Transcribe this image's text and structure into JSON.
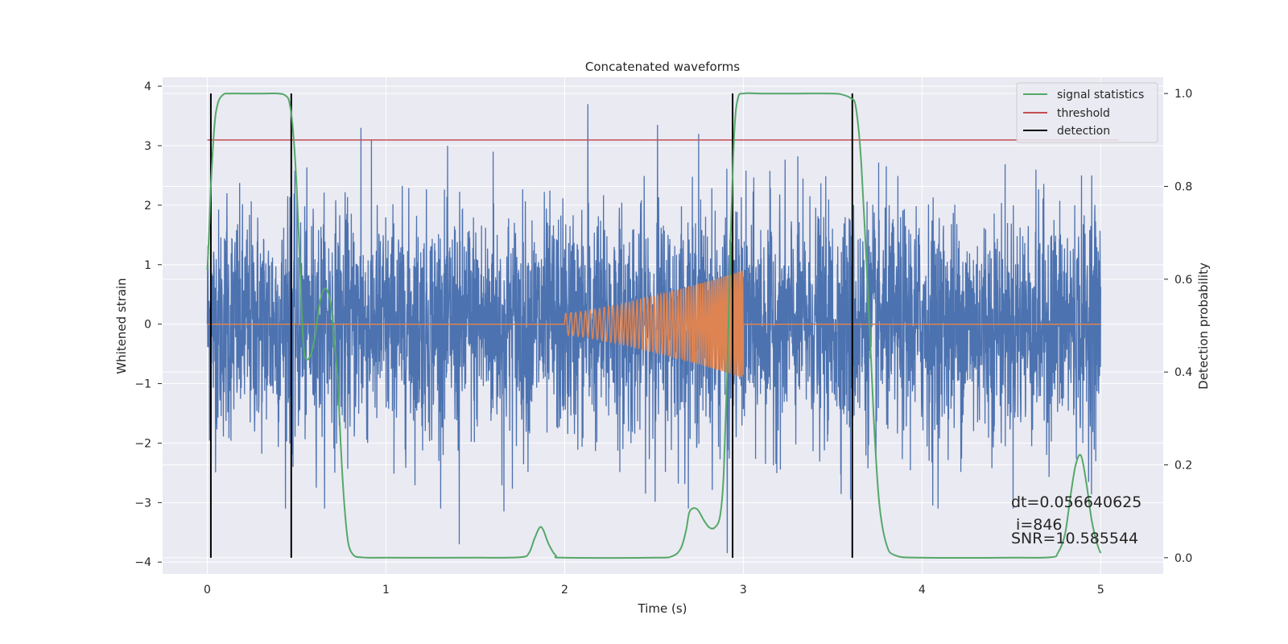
{
  "chart_data": {
    "type": "line",
    "title": "Concatenated waveforms",
    "xlabel": "Time (s)",
    "ylabel": "Whitened strain",
    "ylabel_right": "Detection probability",
    "xlim": [
      -0.25,
      5.35
    ],
    "ylim": [
      -4.2,
      4.15
    ],
    "ylim_right": [
      -0.035,
      1.035
    ],
    "x_ticks": [
      0,
      1,
      2,
      3,
      4,
      5
    ],
    "y_ticks": [
      -4,
      -3,
      -2,
      -1,
      0,
      1,
      2,
      3,
      4
    ],
    "y_ticks_right": [
      0.0,
      0.2,
      0.4,
      0.6,
      0.8,
      1.0
    ],
    "grid": true,
    "legend_position": "top-right",
    "colors": {
      "background": "#eaeaf2",
      "grid": "#ffffff",
      "strain": "#4c72b0",
      "template": "#dd8452",
      "signal_statistics": "#55a868",
      "threshold": "#c44e52",
      "detection": "#000000"
    },
    "series": [
      {
        "name": "strain",
        "axis": "left",
        "description_free": true,
        "x_range": [
          0,
          5
        ],
        "typical_amplitude": 1.0,
        "peak_values": [
          {
            "x": 0.02,
            "y": -1.75
          },
          {
            "x": 0.11,
            "y": 2.2
          },
          {
            "x": 0.45,
            "y": 2.15
          },
          {
            "x": 0.48,
            "y": -2.4
          },
          {
            "x": 0.86,
            "y": 3.3
          },
          {
            "x": 1.41,
            "y": -3.7
          },
          {
            "x": 1.6,
            "y": 2.9
          },
          {
            "x": 1.66,
            "y": -3.15
          },
          {
            "x": 2.13,
            "y": 3.7
          },
          {
            "x": 2.52,
            "y": 3.35
          },
          {
            "x": 2.75,
            "y": 3.2
          },
          {
            "x": 2.91,
            "y": -3.85
          },
          {
            "x": 3.6,
            "y": -2.95
          },
          {
            "x": 4.06,
            "y": -3.05
          },
          {
            "x": 4.95,
            "y": 2.5
          }
        ]
      },
      {
        "name": "template",
        "axis": "left",
        "x_range": [
          2.0,
          3.0
        ],
        "amplitude_start": 0.18,
        "amplitude_end": 0.9,
        "freq_start_hz": 36,
        "freq_end_hz": 110
      },
      {
        "name": "signal statistics",
        "axis": "right",
        "x": [
          0.0,
          0.01,
          0.02,
          0.04,
          0.06,
          0.09,
          0.12,
          0.2,
          0.3,
          0.4,
          0.44,
          0.46,
          0.48,
          0.5,
          0.52,
          0.54,
          0.57,
          0.6,
          0.63,
          0.66,
          0.69,
          0.71,
          0.73,
          0.75,
          0.77,
          0.79,
          0.82,
          0.86,
          0.9,
          1.0,
          1.5,
          1.75,
          1.8,
          1.83,
          1.86,
          1.88,
          1.91,
          1.95,
          2.0,
          2.5,
          2.6,
          2.65,
          2.68,
          2.7,
          2.74,
          2.78,
          2.81,
          2.84,
          2.87,
          2.89,
          2.91,
          2.93,
          2.95,
          2.97,
          3.0,
          3.1,
          3.3,
          3.5,
          3.55,
          3.6,
          3.63,
          3.66,
          3.7,
          3.73,
          3.76,
          3.8,
          3.85,
          4.0,
          4.5,
          4.72,
          4.76,
          4.8,
          4.83,
          4.86,
          4.89,
          4.92,
          4.95,
          4.98,
          5.0
        ],
        "values": [
          0.62,
          0.7,
          0.8,
          0.93,
          0.98,
          0.998,
          1.0,
          1.0,
          1.0,
          1.0,
          0.995,
          0.98,
          0.92,
          0.8,
          0.62,
          0.45,
          0.43,
          0.47,
          0.55,
          0.58,
          0.55,
          0.47,
          0.38,
          0.22,
          0.1,
          0.03,
          0.005,
          0.001,
          0.0,
          0.0,
          0.0,
          0.001,
          0.01,
          0.04,
          0.065,
          0.06,
          0.03,
          0.005,
          0.0,
          0.0,
          0.003,
          0.02,
          0.06,
          0.1,
          0.105,
          0.08,
          0.065,
          0.065,
          0.09,
          0.18,
          0.4,
          0.7,
          0.92,
          0.99,
          1.0,
          1.0,
          1.0,
          1.0,
          0.998,
          0.99,
          0.97,
          0.85,
          0.55,
          0.3,
          0.12,
          0.03,
          0.005,
          0.0,
          0.0,
          0.001,
          0.01,
          0.05,
          0.13,
          0.2,
          0.22,
          0.16,
          0.08,
          0.03,
          0.01
        ]
      },
      {
        "name": "threshold",
        "axis": "right",
        "x": [
          0.0,
          5.1
        ],
        "values": [
          0.9,
          0.9
        ]
      },
      {
        "name": "detection",
        "axis": "right",
        "x_positions": [
          0.02,
          0.47,
          2.94,
          3.61
        ],
        "y_range": [
          0.0,
          1.0
        ]
      }
    ],
    "legend": [
      {
        "label": "signal statistics",
        "color": "#55a868"
      },
      {
        "label": "threshold",
        "color": "#c44e52"
      },
      {
        "label": "detection",
        "color": "#000000"
      }
    ],
    "annotations": [
      {
        "text": "dt=0.056640625"
      },
      {
        "text": " i=846"
      },
      {
        "text": "SNR=10.585544"
      }
    ]
  }
}
